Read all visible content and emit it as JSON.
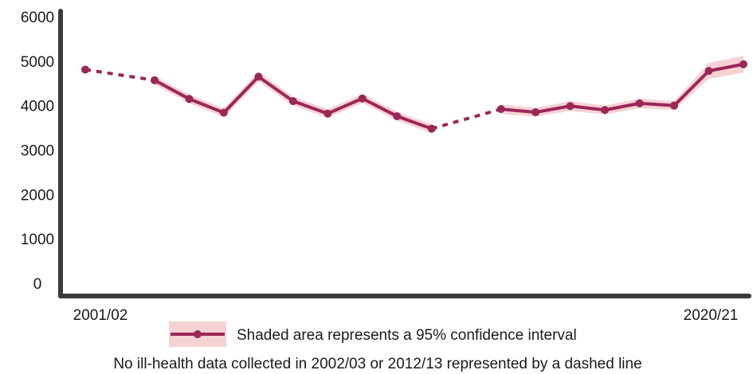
{
  "chart_data": {
    "type": "line",
    "colors": {
      "line": "#9b2757",
      "band": "#f6d2d5",
      "axis": "#3a3a3a"
    },
    "ylim": [
      0,
      6000
    ],
    "yticks": [
      "0",
      "1000",
      "2000",
      "3000",
      "4000",
      "5000",
      "6000"
    ],
    "x_labels": {
      "first": "2001/02",
      "last": "2020/21"
    },
    "grid": false,
    "series": [
      {
        "points": [
          {
            "year": "2001/02",
            "value": 4810,
            "lower": 4720,
            "upper": 4900
          },
          {
            "year": "2002/03",
            "value": null
          },
          {
            "year": "2003/04",
            "value": 4570,
            "lower": 4470,
            "upper": 4670
          },
          {
            "year": "2004/05",
            "value": 4150,
            "lower": 4050,
            "upper": 4250
          },
          {
            "year": "2005/06",
            "value": 3840,
            "lower": 3740,
            "upper": 3940
          },
          {
            "year": "2006/07",
            "value": 4650,
            "lower": 4540,
            "upper": 4760
          },
          {
            "year": "2007/08",
            "value": 4100,
            "lower": 4000,
            "upper": 4200
          },
          {
            "year": "2008/09",
            "value": 3820,
            "lower": 3720,
            "upper": 3920
          },
          {
            "year": "2009/10",
            "value": 4160,
            "lower": 4060,
            "upper": 4260
          },
          {
            "year": "2010/11",
            "value": 3760,
            "lower": 3660,
            "upper": 3860
          },
          {
            "year": "2011/12",
            "value": 3480,
            "lower": 3380,
            "upper": 3580
          },
          {
            "year": "2012/13",
            "value": null
          },
          {
            "year": "2013/14",
            "value": 3920,
            "lower": 3810,
            "upper": 4030
          },
          {
            "year": "2014/15",
            "value": 3850,
            "lower": 3750,
            "upper": 3950
          },
          {
            "year": "2015/16",
            "value": 3990,
            "lower": 3880,
            "upper": 4100
          },
          {
            "year": "2016/17",
            "value": 3900,
            "lower": 3800,
            "upper": 4000
          },
          {
            "year": "2017/18",
            "value": 4050,
            "lower": 3940,
            "upper": 4160
          },
          {
            "year": "2018/19",
            "value": 4000,
            "lower": 3900,
            "upper": 4100
          },
          {
            "year": "2019/20",
            "value": 4780,
            "lower": 4600,
            "upper": 4960
          },
          {
            "year": "2020/21",
            "value": 4930,
            "lower": 4740,
            "upper": 5120
          }
        ]
      }
    ],
    "legend": {
      "text": "Shaded area represents a 95% confidence interval",
      "placement": "bottom"
    },
    "note": "No ill-health data collected in 2002/03 or 2012/13 represented by a dashed line"
  }
}
